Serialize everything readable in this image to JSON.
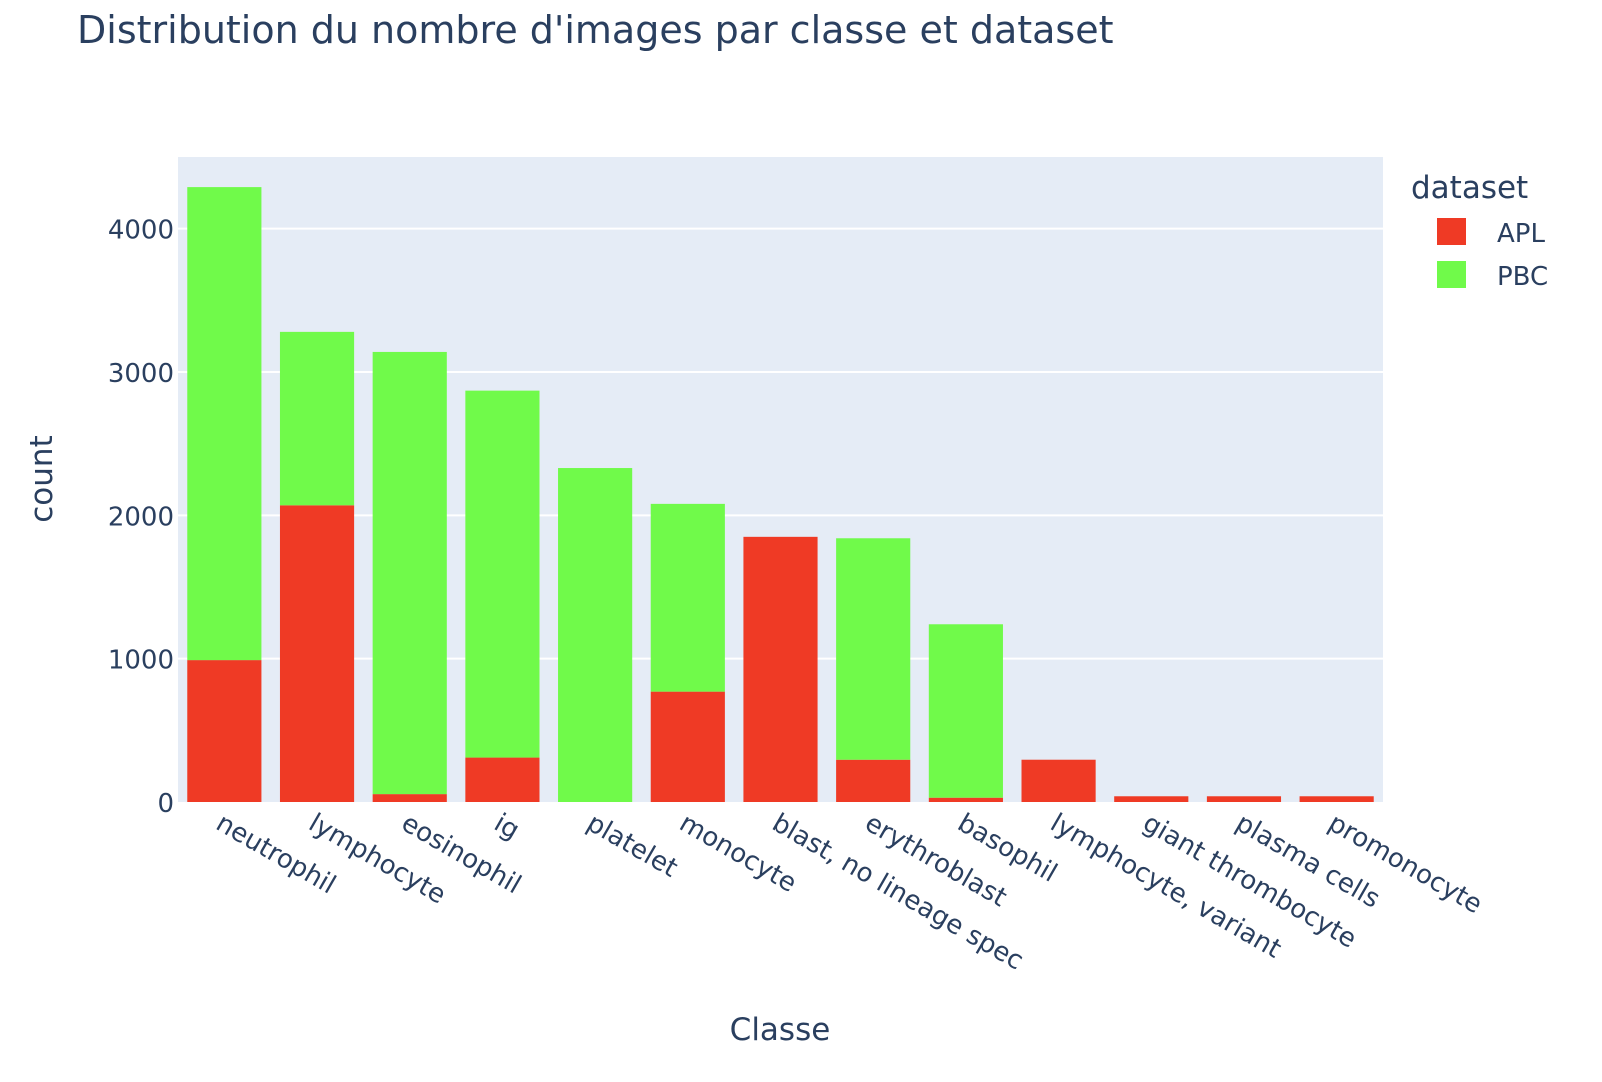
{
  "chart_data": {
    "type": "bar",
    "barmode": "stack",
    "title": "Distribution du nombre d'images par classe et dataset",
    "xlabel": "Classe",
    "ylabel": "count",
    "ylim": [
      0,
      4500
    ],
    "yticks": [
      0,
      1000,
      2000,
      3000,
      4000
    ],
    "ytick_labels": [
      "0",
      "1000",
      "2000",
      "3000",
      "4000"
    ],
    "grid": true,
    "legend": {
      "title": "dataset",
      "position": "top-right"
    },
    "categories": [
      "neutrophil",
      "lymphocyte",
      "eosinophil",
      "ig",
      "platelet",
      "monocyte",
      "blast, no lineage spec",
      "erythroblast",
      "basophil",
      "lymphocyte, variant",
      "giant thrombocyte",
      "plasma cells",
      "promonocyte"
    ],
    "series": [
      {
        "name": "APL",
        "color": "#ef3a25",
        "values": [
          990,
          2070,
          55,
          310,
          0,
          770,
          1850,
          295,
          30,
          295,
          40,
          40,
          40
        ]
      },
      {
        "name": "PBC",
        "color": "#70fa4a",
        "values": [
          3300,
          1210,
          3085,
          2560,
          2330,
          1310,
          0,
          1545,
          1210,
          0,
          0,
          0,
          0
        ]
      }
    ]
  }
}
